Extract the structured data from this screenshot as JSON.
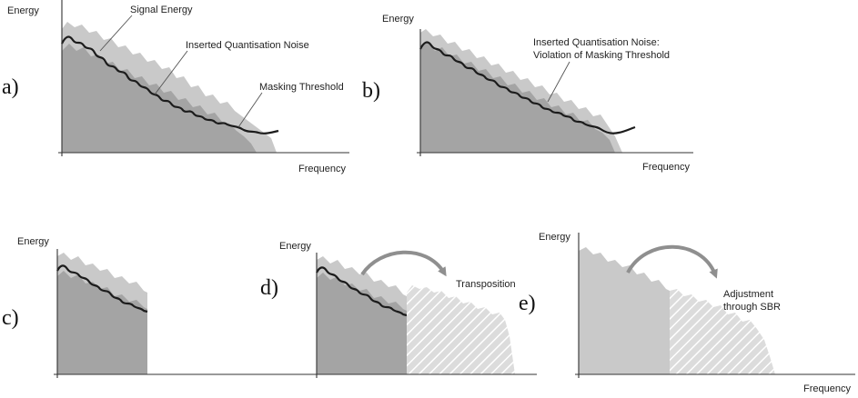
{
  "panels": {
    "a": {
      "letter": "a)",
      "ylabel": "Energy",
      "xlabel": "Frequency",
      "annotations": {
        "signal_energy": "Signal Energy",
        "inserted_noise": "Inserted Quantisation Noise",
        "masking_threshold": "Masking Threshold"
      }
    },
    "b": {
      "letter": "b)",
      "ylabel": "Energy",
      "xlabel": "Frequency",
      "annotations": {
        "violation_line1": "Inserted Quantisation Noise:",
        "violation_line2": "Violation of Masking Threshold"
      }
    },
    "c": {
      "letter": "c)",
      "ylabel": "Energy"
    },
    "d": {
      "letter": "d)",
      "ylabel": "Energy",
      "annotations": {
        "transposition": "Transposition"
      }
    },
    "e": {
      "letter": "e)",
      "ylabel": "Energy",
      "xlabel": "Frequency",
      "annotations": {
        "adjustment_line1": "Adjustment",
        "adjustment_line2": "through SBR"
      }
    }
  },
  "colors": {
    "signal_light": "#c9c9c9",
    "signal_dark": "#a4a4a4",
    "noise_curve": "#1c1c1c",
    "arrow": "#8f8f8f"
  }
}
